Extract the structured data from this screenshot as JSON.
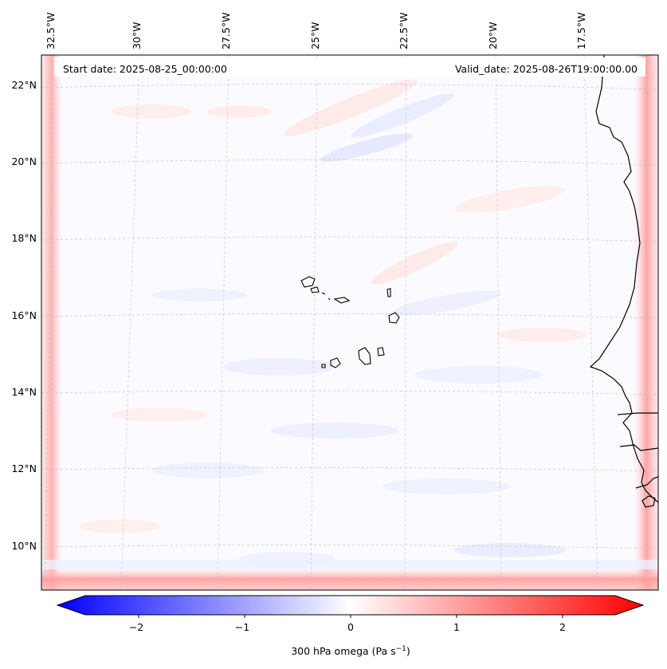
{
  "map": {
    "start_label": "Start date: 2025-08-25_00:00:00",
    "valid_label": "Valid_date: 2025-08-26T19:00:00.00",
    "lon_labels": [
      "32.5°W",
      "30°W",
      "27.5°W",
      "25°W",
      "22.5°W",
      "20°W",
      "17.5°W"
    ],
    "lat_labels": [
      "22°N",
      "20°N",
      "18°N",
      "16°N",
      "14°N",
      "12°N",
      "10°N"
    ]
  },
  "colorbar": {
    "ticks": [
      "−2",
      "−1",
      "0",
      "1",
      "2"
    ],
    "label_main": "300 hPa omega (Pa s",
    "label_sup": "−1",
    "label_end": ")",
    "colors": {
      "neg": "#0000ff",
      "mid": "#ffffff",
      "pos": "#ff0000"
    }
  }
}
